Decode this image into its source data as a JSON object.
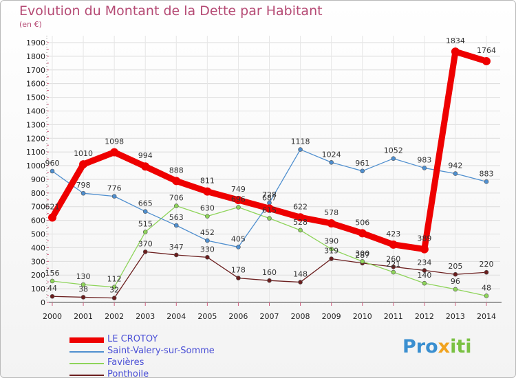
{
  "chart_data": {
    "type": "line",
    "title": "Evolution du Montant de la Dette par Habitant",
    "subtitle": "(en €)",
    "x": [
      "2000",
      "2001",
      "2002",
      "2003",
      "2004",
      "2005",
      "2006",
      "2007",
      "2008",
      "2009",
      "2010",
      "2011",
      "2012",
      "2013",
      "2014"
    ],
    "ylim": [
      0,
      1900
    ],
    "yticks": [
      0,
      100,
      200,
      300,
      400,
      500,
      600,
      700,
      800,
      900,
      1000,
      1100,
      1200,
      1300,
      1400,
      1500,
      1600,
      1700,
      1800,
      1900
    ],
    "grid": true,
    "legend_position": "bottom-left",
    "series": [
      {
        "name": "LE CROTOY",
        "color": "#ee0000",
        "values": [
          621,
          1010,
          1098,
          994,
          888,
          811,
          749,
          687,
          622,
          578,
          506,
          423,
          389,
          1834,
          1764
        ],
        "labels": [
          "621",
          "1010",
          "1098",
          "994",
          "888",
          "811",
          "749",
          "687",
          "622",
          "578",
          "506",
          "423",
          "389",
          "1834",
          "1764"
        ]
      },
      {
        "name": "Saint-Valery-sur-Somme",
        "color": "#4f8fcf",
        "values": [
          960,
          798,
          776,
          665,
          563,
          452,
          405,
          728,
          1118,
          1024,
          961,
          1052,
          983,
          942,
          883
        ],
        "labels": [
          "960",
          "798",
          "776",
          "665",
          "563",
          "452",
          "405",
          "728",
          "1118",
          "1024",
          "961",
          "1052",
          "983",
          "942",
          "883"
        ]
      },
      {
        "name": "Favières",
        "color": "#8ed45a",
        "values": [
          156,
          130,
          112,
          515,
          706,
          630,
          696,
          615,
          528,
          390,
          300,
          221,
          140,
          96,
          48
        ],
        "labels": [
          "156",
          "130",
          "112",
          "515",
          "706",
          "630",
          "696",
          "615",
          "528",
          "390",
          "300",
          "221",
          "140",
          "96",
          "48"
        ]
      },
      {
        "name": "Ponthoile",
        "color": "#6b1e1e",
        "values": [
          44,
          38,
          32,
          370,
          347,
          330,
          178,
          160,
          148,
          319,
          287,
          260,
          234,
          205,
          220
        ],
        "labels": [
          "44",
          "38",
          "32",
          "370",
          "347",
          "330",
          "178",
          "160",
          "148",
          "319",
          "287",
          "260",
          "234",
          "205",
          "220"
        ]
      }
    ]
  },
  "logo": {
    "p1": "Pro",
    "p2": "x",
    "p3": "iti"
  }
}
